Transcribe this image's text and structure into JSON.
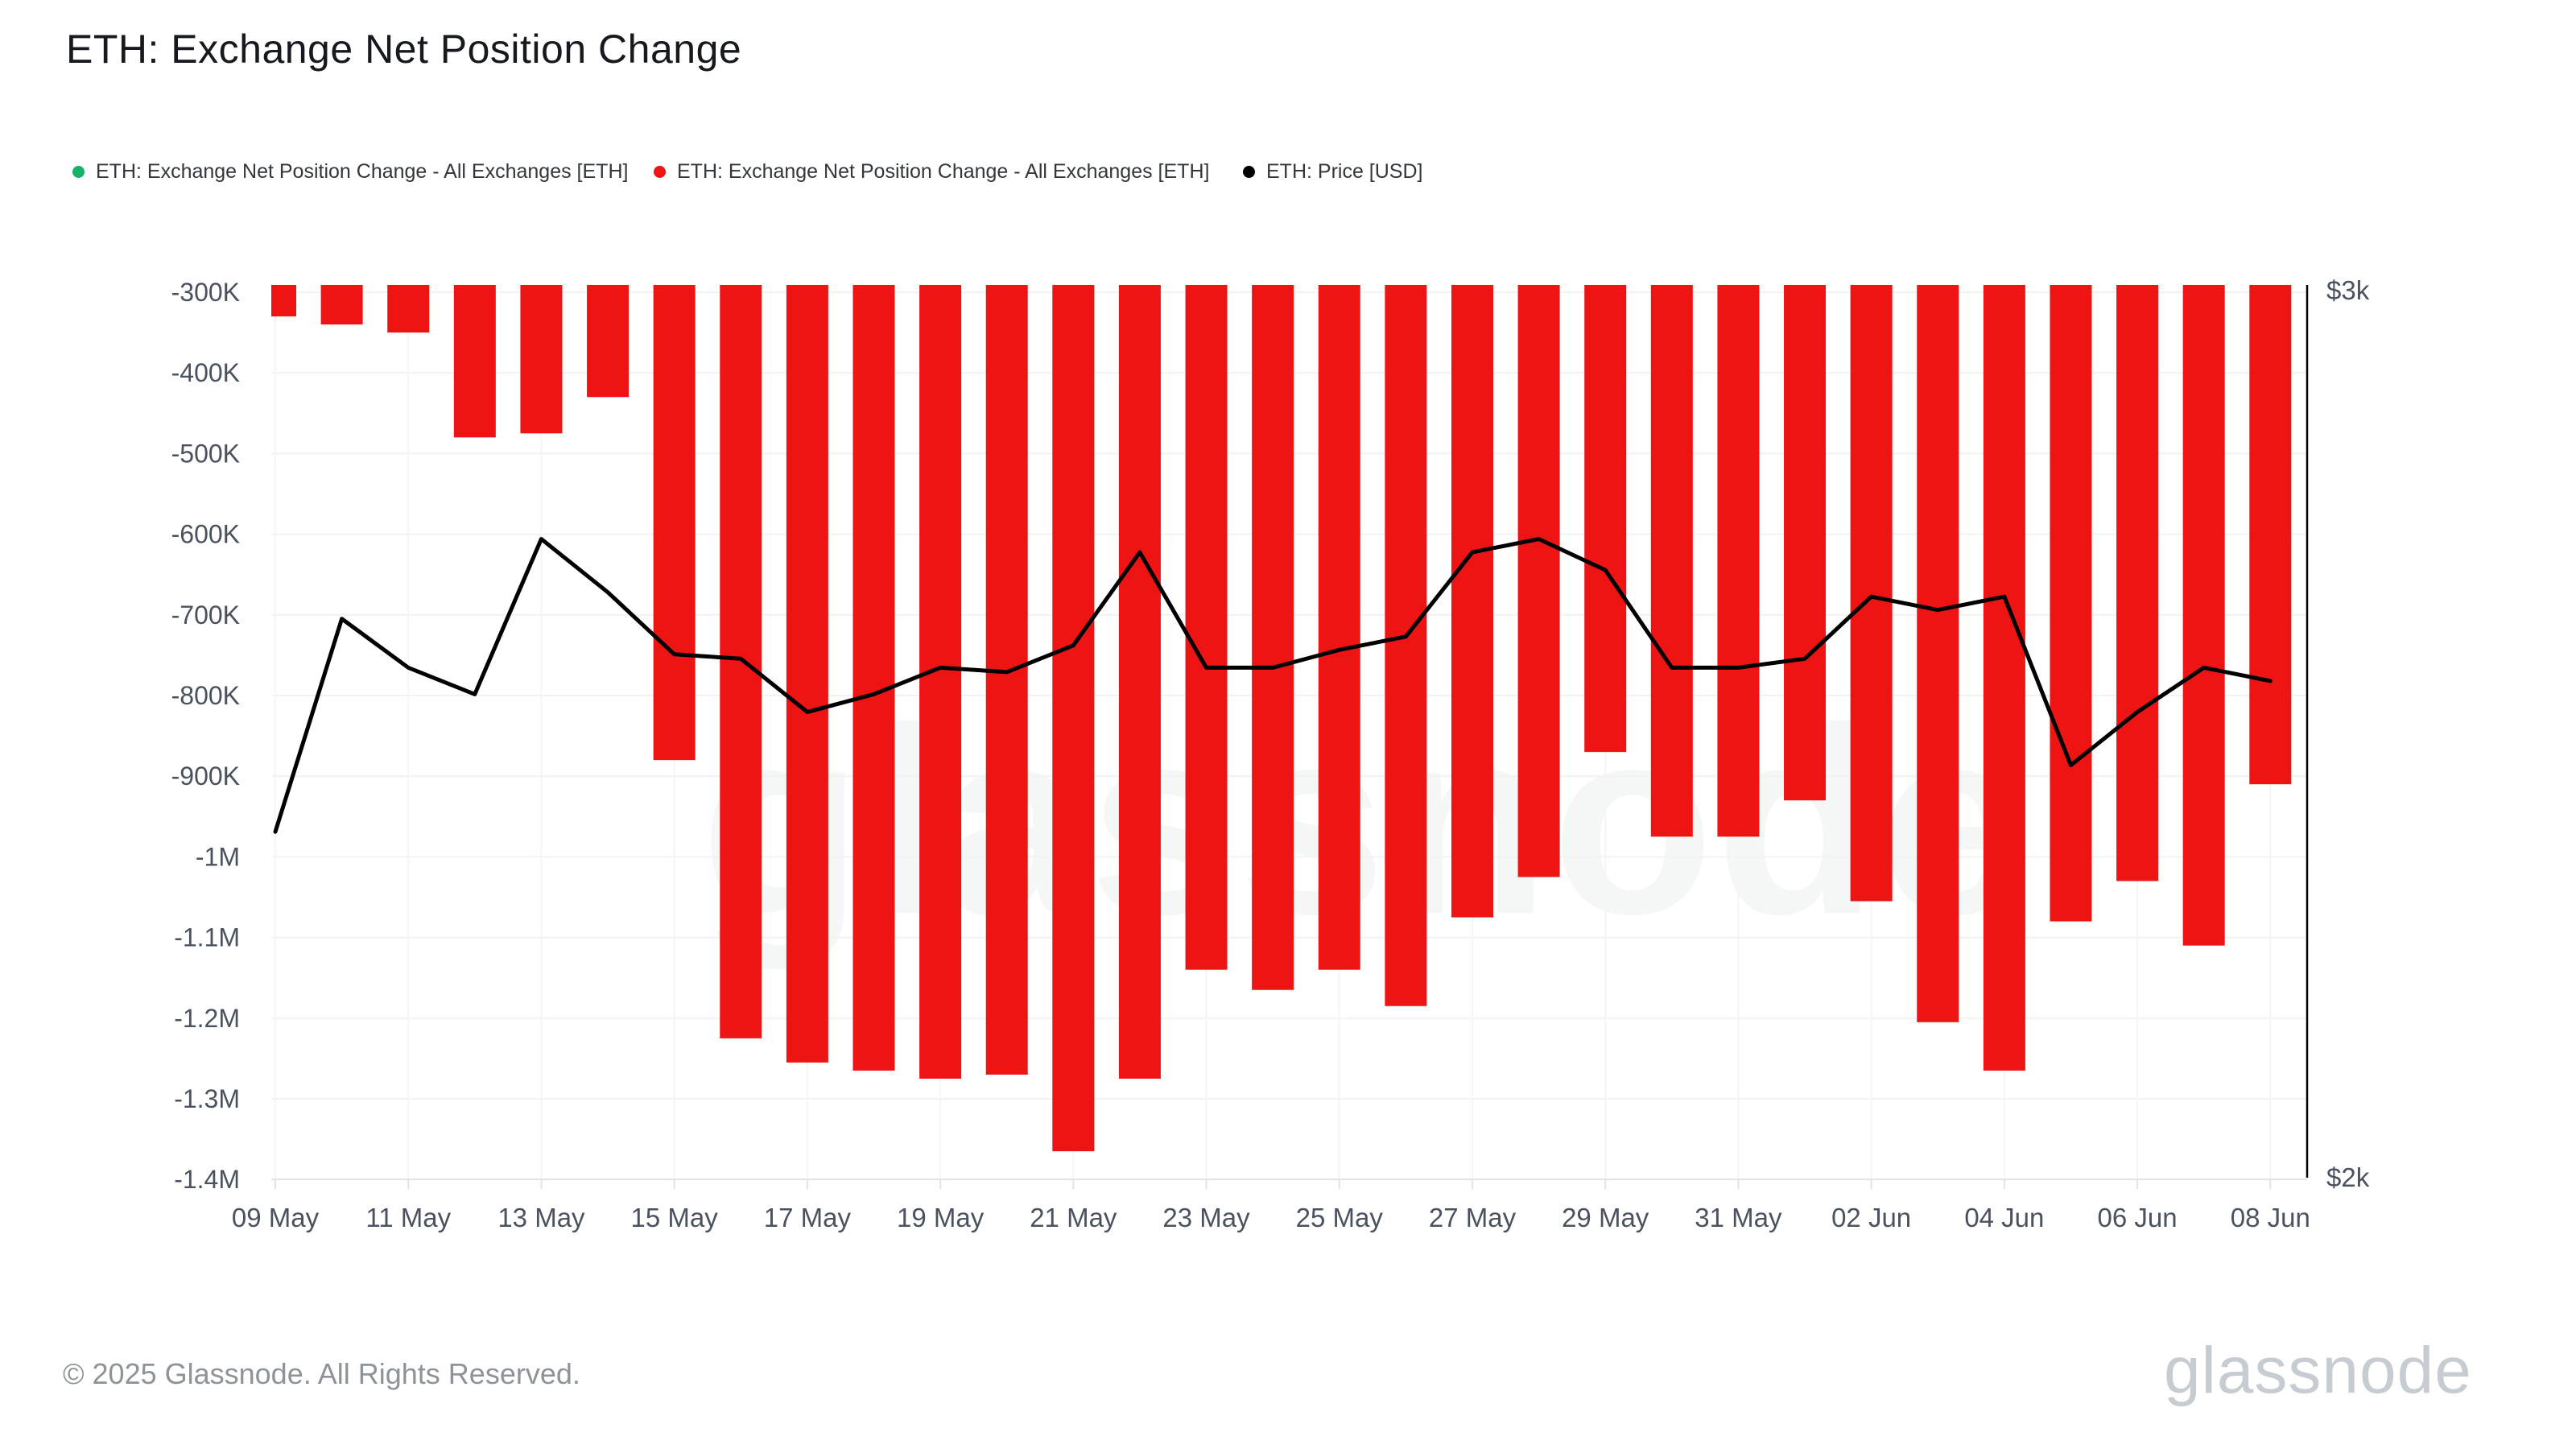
{
  "title": "ETH: Exchange Net Position Change",
  "legend": [
    {
      "label": "ETH: Exchange Net Position Change - All Exchanges [ETH]",
      "color": "#17b26a"
    },
    {
      "label": "ETH: Exchange Net Position Change - All Exchanges [ETH]",
      "color": "#ee1414"
    },
    {
      "label": "ETH: Price [USD]",
      "color": "#000000"
    }
  ],
  "watermark": "glassnode",
  "footer": {
    "copyright": "© 2025 Glassnode. All Rights Reserved.",
    "brand": "glassnode"
  },
  "chart_data": {
    "type": "bar",
    "title": "ETH: Exchange Net Position Change",
    "categories": [
      "09 May",
      "10 May",
      "11 May",
      "12 May",
      "13 May",
      "14 May",
      "15 May",
      "16 May",
      "17 May",
      "18 May",
      "19 May",
      "20 May",
      "21 May",
      "22 May",
      "23 May",
      "24 May",
      "25 May",
      "26 May",
      "27 May",
      "28 May",
      "29 May",
      "30 May",
      "31 May",
      "01 Jun",
      "02 Jun",
      "03 Jun",
      "04 Jun",
      "05 Jun",
      "06 Jun",
      "07 Jun",
      "08 Jun"
    ],
    "x_tick_labels": [
      "09 May",
      "11 May",
      "13 May",
      "15 May",
      "17 May",
      "19 May",
      "21 May",
      "23 May",
      "25 May",
      "27 May",
      "29 May",
      "31 May",
      "02 Jun",
      "04 Jun",
      "06 Jun",
      "08 Jun"
    ],
    "series": [
      {
        "name": "ETH: Exchange Net Position Change - All Exchanges [ETH]",
        "type": "bar",
        "color": "#ee1414",
        "axis": "left",
        "values": [
          -330000,
          -340000,
          -350000,
          -480000,
          -475000,
          -430000,
          -880000,
          -1225000,
          -1255000,
          -1265000,
          -1275000,
          -1270000,
          -1365000,
          -1275000,
          -1140000,
          -1165000,
          -1140000,
          -1185000,
          -1075000,
          -1025000,
          -870000,
          -975000,
          -975000,
          -930000,
          -1055000,
          -1205000,
          -1265000,
          -1080000,
          -1030000,
          -1110000,
          -910000
        ]
      },
      {
        "name": "ETH: Price [USD]",
        "type": "line",
        "color": "#000000",
        "axis": "right",
        "values": [
          2390,
          2630,
          2575,
          2545,
          2720,
          2660,
          2590,
          2585,
          2525,
          2545,
          2575,
          2570,
          2600,
          2705,
          2575,
          2575,
          2595,
          2610,
          2705,
          2720,
          2685,
          2575,
          2575,
          2585,
          2655,
          2640,
          2655,
          2465,
          2525,
          2575,
          2560
        ]
      }
    ],
    "left_axis": {
      "ticks": [
        {
          "label": "-300K",
          "value": -300000
        },
        {
          "label": "-400K",
          "value": -400000
        },
        {
          "label": "-500K",
          "value": -500000
        },
        {
          "label": "-600K",
          "value": -600000
        },
        {
          "label": "-700K",
          "value": -700000
        },
        {
          "label": "-800K",
          "value": -800000
        },
        {
          "label": "-900K",
          "value": -900000
        },
        {
          "label": "-1M",
          "value": -1000000
        },
        {
          "label": "-1.1M",
          "value": -1100000
        },
        {
          "label": "-1.2M",
          "value": -1200000
        },
        {
          "label": "-1.3M",
          "value": -1300000
        },
        {
          "label": "-1.4M",
          "value": -1400000
        }
      ],
      "range": [
        -1400000,
        -300000
      ]
    },
    "right_axis": {
      "ticks": [
        {
          "label": "$3k",
          "value": 3000
        },
        {
          "label": "$2k",
          "value": 2000
        }
      ],
      "range": [
        2000,
        3000
      ]
    },
    "grid": true,
    "legend_position": "top",
    "colors": {
      "bar": "#ee1414",
      "line": "#000000",
      "gridline": "#f2f2f2",
      "axis_line": "#e3e3e3",
      "right_axis_line": "#000000",
      "tick_text": "#4a5260"
    }
  }
}
